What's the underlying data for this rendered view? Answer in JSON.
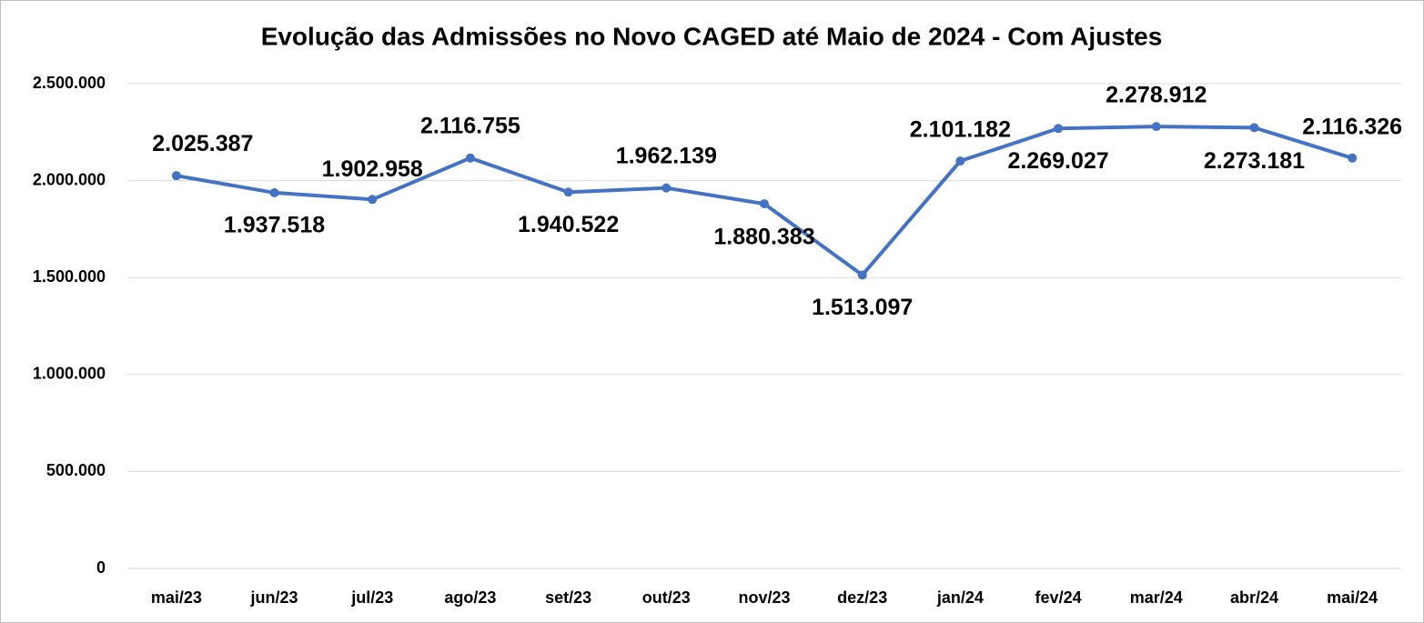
{
  "chart_data": {
    "type": "line",
    "title": "Evolução das Admissões no Novo CAGED até Maio de 2024 - Com Ajustes",
    "categories": [
      "mai/23",
      "jun/23",
      "jul/23",
      "ago/23",
      "set/23",
      "out/23",
      "nov/23",
      "dez/23",
      "jan/24",
      "fev/24",
      "mar/24",
      "abr/24",
      "mai/24"
    ],
    "series": [
      {
        "name": "Admissões",
        "color": "#4472c4",
        "values": [
          2025387,
          1937518,
          1902958,
          2116755,
          1940522,
          1962139,
          1880383,
          1513097,
          2101182,
          2269027,
          2278912,
          2273181,
          2116326
        ],
        "value_labels": [
          "2.025.387",
          "1.937.518",
          "1.902.958",
          "2.116.755",
          "1.940.522",
          "1.962.139",
          "1.880.383",
          "1.513.097",
          "2.101.182",
          "2.269.027",
          "2.278.912",
          "2.273.181",
          "2.116.326"
        ]
      }
    ],
    "ylim": [
      0,
      2500000
    ],
    "yticks": [
      0,
      {
        "value": 500000,
        "label": "500.000"
      },
      {
        "value": 1000000,
        "label": "1.000.000"
      },
      {
        "value": 1500000,
        "label": "1.500.000"
      },
      {
        "value": 2000000,
        "label": "2.000.000"
      },
      {
        "value": 2500000,
        "label": "2.500.000"
      }
    ],
    "grid": true
  }
}
